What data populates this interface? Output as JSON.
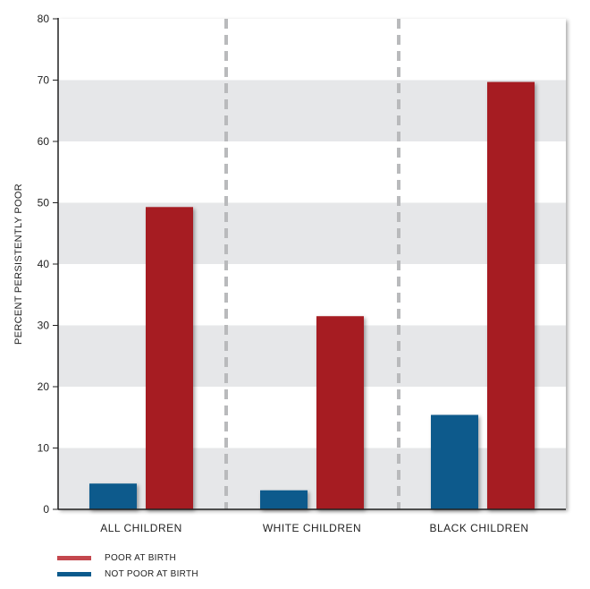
{
  "chart_data": {
    "type": "bar",
    "title": "",
    "xlabel": "",
    "ylabel": "PERCENT PERSISTENTLY POOR",
    "ylim": [
      0,
      80
    ],
    "yticks": [
      0,
      10,
      20,
      30,
      40,
      50,
      60,
      70,
      80
    ],
    "categories": [
      "ALL CHILDREN",
      "WHITE CHILDREN",
      "BLACK CHILDREN"
    ],
    "series": [
      {
        "name": "NOT POOR AT BIRTH",
        "color": "#0b5a8c",
        "values": [
          4.2,
          3.1,
          15.4
        ]
      },
      {
        "name": "POOR AT BIRTH",
        "color": "#a61c24",
        "values": [
          49.3,
          31.5,
          69.7
        ]
      }
    ],
    "legend_order": [
      "POOR AT BIRTH",
      "NOT POOR AT BIRTH"
    ],
    "legend_colors": {
      "POOR AT BIRTH": "#c4474e",
      "NOT POOR AT BIRTH": "#0b5a8c"
    },
    "grid_band_color": "#e6e7e9",
    "legend_position": "bottom-left"
  }
}
